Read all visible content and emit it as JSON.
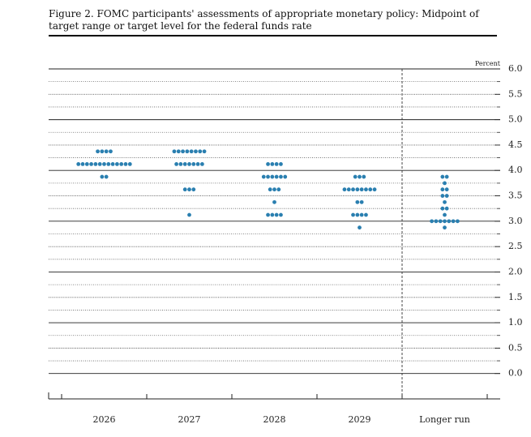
{
  "chart_data": {
    "type": "dot",
    "title": "Figure 2. FOMC participants' assessments of appropriate monetary policy: Midpoint of target range or target level for the federal funds rate",
    "y_axis_label": "Percent",
    "categories": [
      "2026",
      "2027",
      "2028",
      "2029",
      "Longer run"
    ],
    "color": "#2a7fb0",
    "dots": [
      [
        {
          "value": 4.375,
          "count": 4
        },
        {
          "value": 4.125,
          "count": 13
        },
        {
          "value": 3.875,
          "count": 2
        }
      ],
      [
        {
          "value": 4.375,
          "count": 8
        },
        {
          "value": 4.125,
          "count": 7
        },
        {
          "value": 3.625,
          "count": 3
        },
        {
          "value": 3.125,
          "count": 1
        }
      ],
      [
        {
          "value": 4.125,
          "count": 4
        },
        {
          "value": 3.875,
          "count": 6
        },
        {
          "value": 3.625,
          "count": 3
        },
        {
          "value": 3.375,
          "count": 1
        },
        {
          "value": 3.125,
          "count": 4
        }
      ],
      [
        {
          "value": 3.875,
          "count": 3
        },
        {
          "value": 3.625,
          "count": 8
        },
        {
          "value": 3.375,
          "count": 2
        },
        {
          "value": 3.125,
          "count": 4
        },
        {
          "value": 2.875,
          "count": 1
        }
      ],
      [
        {
          "value": 3.875,
          "count": 2
        },
        {
          "value": 3.75,
          "count": 1
        },
        {
          "value": 3.625,
          "count": 2
        },
        {
          "value": 3.5,
          "count": 2
        },
        {
          "value": 3.375,
          "count": 1
        },
        {
          "value": 3.25,
          "count": 2
        },
        {
          "value": 3.125,
          "count": 1
        },
        {
          "value": 3.0,
          "count": 7
        },
        {
          "value": 2.875,
          "count": 1
        }
      ]
    ],
    "ylim": [
      -0.5,
      6.0
    ],
    "yticks": [
      {
        "value": 0,
        "label": "0.0"
      },
      0.5,
      {
        "value": 1,
        "label": "1.0"
      },
      1.5,
      {
        "value": 2,
        "label": "2.0"
      },
      2.5,
      {
        "value": 3,
        "label": "3.0"
      },
      3.5,
      {
        "value": 4,
        "label": "4.0"
      },
      4.5,
      {
        "value": 5,
        "label": "5.0"
      },
      5.5,
      {
        "value": 6,
        "label": "6.0"
      }
    ],
    "minor_yticks": [
      0.25,
      0.75,
      1.25,
      1.75,
      2.25,
      2.75,
      3.25,
      3.75,
      4.25,
      4.75,
      5.25,
      5.75
    ],
    "grid": true
  }
}
